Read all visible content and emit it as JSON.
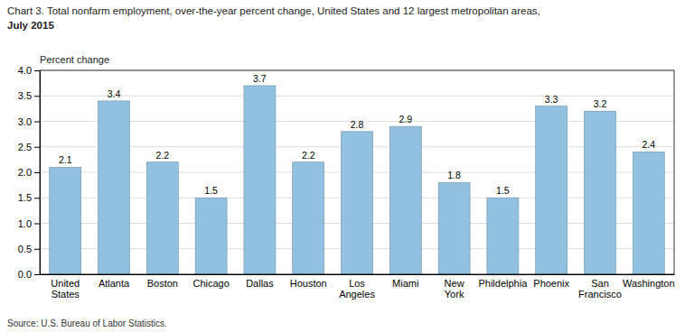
{
  "chart_data": {
    "type": "bar",
    "title": "Chart 3. Total nonfarm employment, over-the-year percent change, United States and 12 largest metropolitan areas,",
    "subtitle": "July 2015",
    "y_label": "Percent change",
    "annotations": [
      "Source: U.S. Bureau of Labor Statistics."
    ],
    "categories": [
      "United\nStates",
      "Atlanta",
      "Boston",
      "Chicago",
      "Dallas",
      "Houston",
      "Los\nAngeles",
      "Miami",
      "New\nYork",
      "Phildelphia",
      "Phoenix",
      "San\nFrancisco",
      "Washington"
    ],
    "values": [
      2.1,
      3.4,
      2.2,
      1.5,
      3.7,
      2.2,
      2.8,
      2.9,
      1.8,
      1.5,
      3.3,
      3.2,
      2.4
    ],
    "color": "#92C0E0",
    "ylim": [
      0,
      4.0
    ],
    "yticks": [
      {
        "value": 0.0,
        "label": "0.0"
      },
      0.5,
      {
        "value": 1.0,
        "label": "1.0"
      },
      1.5,
      {
        "value": 2.0,
        "label": "2.0"
      },
      2.5,
      {
        "value": 3.0,
        "label": "3.0"
      },
      3.5,
      {
        "value": 4.0,
        "label": "4.0"
      }
    ],
    "grid": true,
    "data_labels": true
  }
}
